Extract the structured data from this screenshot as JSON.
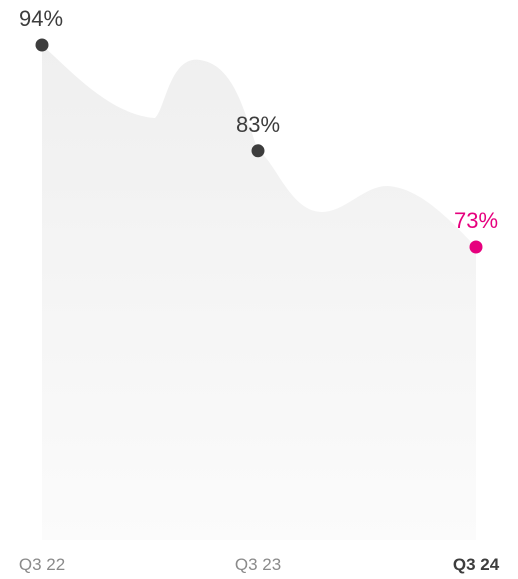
{
  "chart_data": {
    "type": "area",
    "title": "",
    "xlabel": "",
    "ylabel": "",
    "ylim": [
      0,
      100
    ],
    "grid": false,
    "legend": "none",
    "points": [
      {
        "x": "Q3 22",
        "y": 94,
        "label": "94%",
        "highlight": false
      },
      {
        "x": "Q3 23",
        "y": 83,
        "label": "83%",
        "highlight": false
      },
      {
        "x": "Q3 24",
        "y": 73,
        "label": "73%",
        "highlight": true
      }
    ],
    "x_ticks": [
      "Q3 22",
      "Q3 23",
      "Q3 24"
    ],
    "colors": {
      "area_top": "#efefef",
      "area_bottom": "#fbfbfb",
      "point": "#3d3d3d",
      "label": "#3d3d3d",
      "highlight": "#e6007e",
      "tick": "#8a8a8a",
      "tick_highlight": "#3d3d3d"
    }
  }
}
